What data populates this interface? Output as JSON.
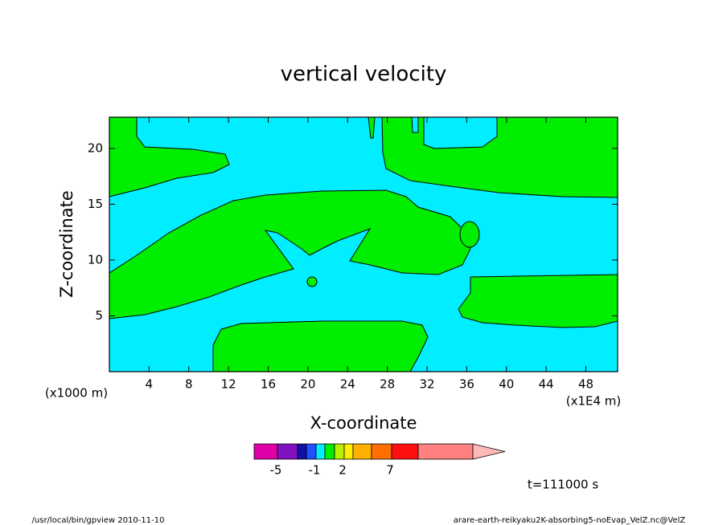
{
  "chart_data": {
    "type": "contour",
    "title": "vertical velocity",
    "x_label": "X-coordinate",
    "y_label": "Z-coordinate",
    "x_unit": "(x1E4 m)",
    "y_unit": "(x1000 m)",
    "xlim": [
      0,
      51.2
    ],
    "ylim": [
      0,
      22.8
    ],
    "xticks": [
      4,
      8,
      12,
      16,
      20,
      24,
      28,
      32,
      36,
      40,
      44,
      48
    ],
    "yticks": [
      5,
      10,
      15,
      20
    ],
    "colorbar": {
      "colors": [
        "#e000a8",
        "#8010c0",
        "#1010a8",
        "#2050ff",
        "#00eeff",
        "#00ee00",
        "#b8f000",
        "#ffee00",
        "#ffb000",
        "#ff7000",
        "#ff1010",
        "#ff8080",
        "#ffb8b8"
      ],
      "ticks": [
        -5,
        -1,
        2,
        7
      ]
    },
    "time_label": "t=111000 s",
    "footer_left": "/usr/local/bin/gpview  2010-11-10",
    "footer_right": "arare-earth-reikyaku2K-absorbing5-noEvap_VelZ.nc@VelZ"
  }
}
